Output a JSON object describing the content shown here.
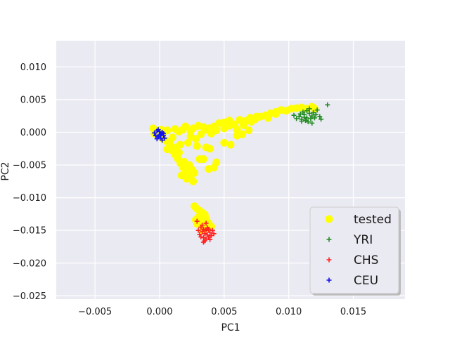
{
  "chart_data": {
    "type": "scatter",
    "title": "",
    "xlabel": "PC1",
    "ylabel": "PC2",
    "xlim": [
      -0.008,
      0.019
    ],
    "ylim": [
      -0.0255,
      0.014
    ],
    "xticks": [
      "−0.005",
      "0.000",
      "0.005",
      "0.010",
      "0.015"
    ],
    "xtick_values": [
      -0.005,
      0.0,
      0.005,
      0.01,
      0.015
    ],
    "yticks": [
      "0.010",
      "0.005",
      "0.000",
      "−0.005",
      "−0.010",
      "−0.015",
      "−0.020",
      "−0.025"
    ],
    "ytick_values": [
      0.01,
      0.005,
      0.0,
      -0.005,
      -0.01,
      -0.015,
      -0.02,
      -0.025
    ],
    "grid": true,
    "legend_position": "lower-right",
    "series": [
      {
        "name": "tested",
        "marker": "circle",
        "color": "#ffff00",
        "points": [
          [
            -0.0005,
            0.0006
          ],
          [
            -0.0003,
            0.0003
          ],
          [
            0.0001,
            0.0004
          ],
          [
            0.0004,
            0.0002
          ],
          [
            0.0006,
            0.0003
          ],
          [
            -0.0004,
            -0.0002
          ],
          [
            0.0002,
            -0.0009
          ],
          [
            0.0005,
            -0.0013
          ],
          [
            0.0008,
            -0.0015
          ],
          [
            0.001,
            -0.0008
          ],
          [
            0.0012,
            0.0005
          ],
          [
            0.0015,
            0.0001
          ],
          [
            0.0018,
            0.0004
          ],
          [
            0.002,
            0.0009
          ],
          [
            0.0024,
            0.0001
          ],
          [
            0.0026,
            0.0006
          ],
          [
            0.003,
            0.001
          ],
          [
            0.0034,
            0.0008
          ],
          [
            0.0038,
            0.0006
          ],
          [
            0.0042,
            0.0009
          ],
          [
            0.0046,
            0.0014
          ],
          [
            0.005,
            0.0015
          ],
          [
            0.0054,
            0.0018
          ],
          [
            0.0058,
            0.0012
          ],
          [
            0.0062,
            0.0019
          ],
          [
            0.0066,
            0.0017
          ],
          [
            0.007,
            0.0022
          ],
          [
            0.0074,
            0.002
          ],
          [
            0.0078,
            0.0024
          ],
          [
            0.0082,
            0.0026
          ],
          [
            0.0086,
            0.0029
          ],
          [
            0.009,
            0.0031
          ],
          [
            0.0094,
            0.0034
          ],
          [
            0.0098,
            0.0033
          ],
          [
            0.0102,
            0.0036
          ],
          [
            0.0106,
            0.0037
          ],
          [
            0.011,
            0.0038
          ],
          [
            0.0114,
            0.0036
          ],
          [
            0.0118,
            0.0039
          ],
          [
            0.012,
            0.0036
          ],
          [
            0.009,
            0.0028
          ],
          [
            0.0084,
            0.0022
          ],
          [
            0.0075,
            0.0024
          ],
          [
            0.0071,
            0.0016
          ],
          [
            0.0065,
            0.0011
          ],
          [
            0.006,
            0.0004
          ],
          [
            0.0054,
            0.001
          ],
          [
            0.005,
            0.0006
          ],
          [
            0.0044,
            0.0003
          ],
          [
            0.004,
            -0.0002
          ],
          [
            0.0036,
            0.0004
          ],
          [
            0.0032,
            -0.0003
          ],
          [
            0.0028,
            -0.001
          ],
          [
            0.0024,
            -0.0006
          ],
          [
            0.0022,
            -0.0016
          ],
          [
            0.0016,
            -0.0019
          ],
          [
            0.0013,
            -0.0023
          ],
          [
            0.001,
            -0.0028
          ],
          [
            0.0012,
            -0.0034
          ],
          [
            0.0014,
            -0.004
          ],
          [
            0.0016,
            -0.0047
          ],
          [
            0.0018,
            -0.0053
          ],
          [
            0.002,
            -0.0059
          ],
          [
            0.0022,
            -0.0064
          ],
          [
            0.0024,
            -0.0069
          ],
          [
            0.0026,
            -0.0075
          ],
          [
            0.0021,
            -0.0071
          ],
          [
            0.0017,
            -0.0066
          ],
          [
            0.0019,
            -0.0045
          ],
          [
            0.0023,
            -0.005
          ],
          [
            0.0025,
            -0.0057
          ],
          [
            0.0027,
            -0.0062
          ],
          [
            0.0015,
            -0.0031
          ],
          [
            0.0008,
            -0.002
          ],
          [
            0.0006,
            -0.0026
          ],
          [
            0.0036,
            -0.0023
          ],
          [
            0.0039,
            -0.0025
          ],
          [
            0.0034,
            -0.0041
          ],
          [
            0.0044,
            -0.0046
          ],
          [
            0.0042,
            -0.0054
          ],
          [
            0.0038,
            -0.0056
          ],
          [
            0.005,
            -0.0016
          ],
          [
            0.0055,
            -0.0019
          ],
          [
            0.006,
            -0.0005
          ],
          [
            0.0064,
            -0.0003
          ],
          [
            0.0069,
            0.0003
          ],
          [
            0.0029,
            -0.0021
          ],
          [
            0.0031,
            -0.0041
          ],
          [
            0.0027,
            -0.0113
          ],
          [
            0.0029,
            -0.0117
          ],
          [
            0.0031,
            -0.012
          ],
          [
            0.0033,
            -0.0123
          ],
          [
            0.0035,
            -0.0126
          ],
          [
            0.003,
            -0.013
          ],
          [
            0.0028,
            -0.0134
          ],
          [
            0.0032,
            -0.0137
          ],
          [
            0.0036,
            -0.0132
          ],
          [
            0.0038,
            -0.0139
          ],
          [
            0.0034,
            -0.0143
          ],
          [
            0.0029,
            -0.014
          ],
          [
            0.004,
            -0.0144
          ],
          [
            0.0037,
            -0.0147
          ],
          [
            0.0033,
            -0.015
          ]
        ]
      },
      {
        "name": "YRI",
        "marker": "plus",
        "color": "#228b22",
        "points": [
          [
            0.0108,
            0.0024
          ],
          [
            0.011,
            0.002
          ],
          [
            0.0112,
            0.0027
          ],
          [
            0.0114,
            0.0022
          ],
          [
            0.0116,
            0.0029
          ],
          [
            0.0118,
            0.0025
          ],
          [
            0.0111,
            0.0031
          ],
          [
            0.0113,
            0.0018
          ],
          [
            0.0115,
            0.0016
          ],
          [
            0.0117,
            0.0021
          ],
          [
            0.0119,
            0.003
          ],
          [
            0.0121,
            0.0027
          ],
          [
            0.0109,
            0.0028
          ],
          [
            0.012,
            0.0022
          ],
          [
            0.0112,
            0.0023
          ],
          [
            0.0114,
            0.0033
          ],
          [
            0.0122,
            0.0034
          ],
          [
            0.0106,
            0.0021
          ],
          [
            0.0124,
            0.0024
          ],
          [
            0.013,
            0.0042
          ],
          [
            0.0125,
            0.002
          ],
          [
            0.0104,
            0.0026
          ],
          [
            0.0116,
            0.0036
          ],
          [
            0.0118,
            0.0014
          ],
          [
            0.011,
            0.0017
          ]
        ]
      },
      {
        "name": "CHS",
        "marker": "plus",
        "color": "#ff2020",
        "points": [
          [
            0.0032,
            -0.0145
          ],
          [
            0.0034,
            -0.0148
          ],
          [
            0.0036,
            -0.015
          ],
          [
            0.0033,
            -0.0152
          ],
          [
            0.0035,
            -0.0155
          ],
          [
            0.0037,
            -0.0157
          ],
          [
            0.0039,
            -0.0153
          ],
          [
            0.0031,
            -0.0156
          ],
          [
            0.0038,
            -0.016
          ],
          [
            0.0034,
            -0.0161
          ],
          [
            0.0036,
            -0.0163
          ],
          [
            0.004,
            -0.0158
          ],
          [
            0.0041,
            -0.015
          ],
          [
            0.0033,
            -0.0142
          ],
          [
            0.0035,
            -0.0166
          ],
          [
            0.0037,
            -0.0146
          ],
          [
            0.003,
            -0.015
          ],
          [
            0.0039,
            -0.0164
          ],
          [
            0.0042,
            -0.0155
          ],
          [
            0.0029,
            -0.0136
          ],
          [
            0.0036,
            -0.0139
          ],
          [
            0.0032,
            -0.016
          ],
          [
            0.0038,
            -0.0148
          ],
          [
            0.0034,
            -0.0168
          ]
        ]
      },
      {
        "name": "CEU",
        "marker": "plus",
        "color": "#1010ee",
        "points": [
          [
            -0.0004,
            -0.0001
          ],
          [
            -0.0002,
            0.0002
          ],
          [
            0.0,
            -0.0004
          ],
          [
            0.0002,
            0.0
          ],
          [
            -0.0001,
            -0.0007
          ],
          [
            0.0001,
            -0.0009
          ],
          [
            0.0003,
            -0.0005
          ],
          [
            -0.0003,
            -0.0005
          ],
          [
            0.0,
            0.0001
          ],
          [
            0.0002,
            -0.0012
          ],
          [
            -0.0002,
            -0.001
          ],
          [
            0.0001,
            -0.0003
          ],
          [
            0.0004,
            -0.0009
          ],
          [
            -0.0001,
            0.0004
          ],
          [
            0.0003,
            -0.0002
          ]
        ]
      }
    ]
  }
}
